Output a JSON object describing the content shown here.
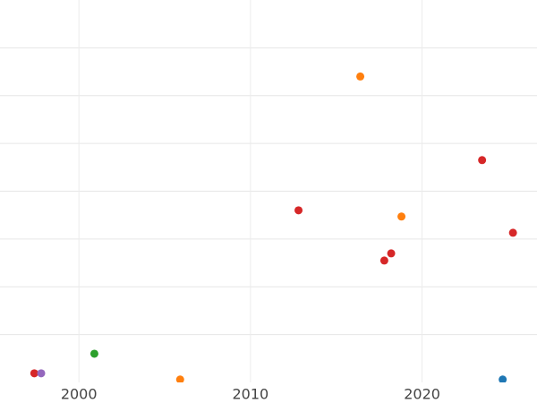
{
  "chart_data": {
    "type": "scatter",
    "xlim": [
      1995.4,
      2026.7
    ],
    "xticks": [
      2000,
      2010,
      2020
    ],
    "ylim": [
      0,
      8
    ],
    "yticks": [
      1,
      2,
      3,
      4,
      5,
      6,
      7
    ],
    "grid": true,
    "series": [
      {
        "color": "#d62728",
        "x": [
          1997.4,
          2012.8,
          2017.8,
          2018.2,
          2023.5,
          2025.3
        ],
        "values": [
          0.19,
          3.6,
          2.55,
          2.7,
          4.65,
          3.13
        ]
      },
      {
        "color": "#9467bd",
        "x": [
          1997.8
        ],
        "values": [
          0.19
        ]
      },
      {
        "color": "#2ca02c",
        "x": [
          2000.9
        ],
        "values": [
          0.6
        ]
      },
      {
        "color": "#ff7f0e",
        "x": [
          2005.9,
          2016.4,
          2018.8
        ],
        "values": [
          0.06,
          6.4,
          3.47
        ]
      },
      {
        "color": "#1f77b4",
        "x": [
          2024.7
        ],
        "values": [
          0.06
        ]
      }
    ]
  }
}
